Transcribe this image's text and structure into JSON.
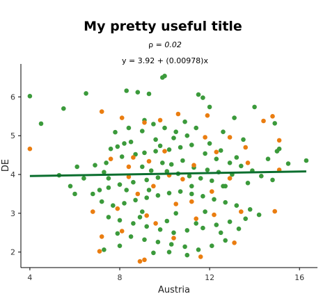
{
  "chart_data": {
    "type": "scatter",
    "title": "My pretty useful title",
    "subtitle_prefix": "ρ = ",
    "subtitle_value": "0.02",
    "equation": "y = 3.92 + (0.00978)x",
    "xlabel": "Austria",
    "ylabel": "DE",
    "xlim": [
      3.6,
      16.8
    ],
    "ylim": [
      1.6,
      6.85
    ],
    "xticks": [
      4,
      8,
      12,
      16
    ],
    "yticks": [
      2,
      3,
      4,
      5,
      6
    ],
    "grid": false,
    "colors": {
      "green": "#3b9a3b",
      "orange": "#ea7d10",
      "line": "#0a6e2e"
    },
    "regression": {
      "intercept": 3.92,
      "slope": 0.00978,
      "x_range": [
        4,
        16.3
      ]
    },
    "series": [
      {
        "color_key": "green",
        "points": [
          [
            4.0,
            6.02
          ],
          [
            4.5,
            5.31
          ],
          [
            5.5,
            5.7
          ],
          [
            6.5,
            6.09
          ],
          [
            6.9,
            4.24
          ],
          [
            7.3,
            4.06
          ],
          [
            7.5,
            3.9
          ],
          [
            7.8,
            5.09
          ],
          [
            8.3,
            6.16
          ],
          [
            8.8,
            6.12
          ],
          [
            9.3,
            6.08
          ],
          [
            9.9,
            6.5
          ],
          [
            10.0,
            6.54
          ],
          [
            11.5,
            6.06
          ],
          [
            11.7,
            5.98
          ],
          [
            12.0,
            5.74
          ],
          [
            13.1,
            5.46
          ],
          [
            14.0,
            5.74
          ],
          [
            14.9,
            5.32
          ],
          [
            15.1,
            4.66
          ],
          [
            16.3,
            4.36
          ],
          [
            13.5,
            4.9
          ],
          [
            13.2,
            4.44
          ],
          [
            12.5,
            4.62
          ],
          [
            12.0,
            4.8
          ],
          [
            11.0,
            5.0
          ],
          [
            10.5,
            5.1
          ],
          [
            10.0,
            5.2
          ],
          [
            9.5,
            5.3
          ],
          [
            9.0,
            5.12
          ],
          [
            8.5,
            4.84
          ],
          [
            8.2,
            4.8
          ],
          [
            7.9,
            4.72
          ],
          [
            7.6,
            4.66
          ],
          [
            8.1,
            4.46
          ],
          [
            8.7,
            4.52
          ],
          [
            9.1,
            4.56
          ],
          [
            9.6,
            4.6
          ],
          [
            10.2,
            4.64
          ],
          [
            10.7,
            4.7
          ],
          [
            11.2,
            4.76
          ],
          [
            11.8,
            4.54
          ],
          [
            12.3,
            4.4
          ],
          [
            12.9,
            4.3
          ],
          [
            13.4,
            4.22
          ],
          [
            13.9,
            4.1
          ],
          [
            14.3,
            3.96
          ],
          [
            14.8,
            3.86
          ],
          [
            13.7,
            3.78
          ],
          [
            12.7,
            3.7
          ],
          [
            12.1,
            3.84
          ],
          [
            11.6,
            3.9
          ],
          [
            11.1,
            3.96
          ],
          [
            10.6,
            4.02
          ],
          [
            10.1,
            4.08
          ],
          [
            9.7,
            3.92
          ],
          [
            9.2,
            3.86
          ],
          [
            8.6,
            3.8
          ],
          [
            8.0,
            3.74
          ],
          [
            7.5,
            3.66
          ],
          [
            7.1,
            3.6
          ],
          [
            6.8,
            3.5
          ],
          [
            7.2,
            3.3
          ],
          [
            7.7,
            3.2
          ],
          [
            8.2,
            3.26
          ],
          [
            8.7,
            3.34
          ],
          [
            9.2,
            3.4
          ],
          [
            9.7,
            3.46
          ],
          [
            10.2,
            3.52
          ],
          [
            10.7,
            3.56
          ],
          [
            11.2,
            3.5
          ],
          [
            11.7,
            3.44
          ],
          [
            12.2,
            3.36
          ],
          [
            12.7,
            3.28
          ],
          [
            13.2,
            3.2
          ],
          [
            13.8,
            3.1
          ],
          [
            14.2,
            2.96
          ],
          [
            13.6,
            2.86
          ],
          [
            12.9,
            2.78
          ],
          [
            12.3,
            2.7
          ],
          [
            11.7,
            2.62
          ],
          [
            11.0,
            2.56
          ],
          [
            10.4,
            2.5
          ],
          [
            9.8,
            2.58
          ],
          [
            9.2,
            2.66
          ],
          [
            8.6,
            2.74
          ],
          [
            8.0,
            2.82
          ],
          [
            7.5,
            2.9
          ],
          [
            7.9,
            2.48
          ],
          [
            8.5,
            2.4
          ],
          [
            9.1,
            2.32
          ],
          [
            9.7,
            2.26
          ],
          [
            10.3,
            2.2
          ],
          [
            10.9,
            2.14
          ],
          [
            11.5,
            2.06
          ],
          [
            12.1,
            2.16
          ],
          [
            12.7,
            2.3
          ],
          [
            11.0,
            1.92
          ],
          [
            10.2,
            2.0
          ],
          [
            9.5,
            1.98
          ],
          [
            8.0,
            2.16
          ],
          [
            7.3,
            2.06
          ],
          [
            5.3,
            3.98
          ],
          [
            6.1,
            4.2
          ],
          [
            5.8,
            3.7
          ],
          [
            6.4,
            3.9
          ],
          [
            6.0,
            3.5
          ],
          [
            15.5,
            4.28
          ],
          [
            15.0,
            4.6
          ],
          [
            14.6,
            4.4
          ],
          [
            9.0,
            4.2
          ],
          [
            9.4,
            4.1
          ],
          [
            9.9,
            4.3
          ],
          [
            10.3,
            4.26
          ],
          [
            10.8,
            4.36
          ],
          [
            11.3,
            4.18
          ],
          [
            11.9,
            4.12
          ],
          [
            12.4,
            4.06
          ],
          [
            9.6,
            4.9
          ],
          [
            10.4,
            4.94
          ],
          [
            11.4,
            5.2
          ],
          [
            10.9,
            5.36
          ],
          [
            9.1,
            5.4
          ],
          [
            8.4,
            5.2
          ],
          [
            12.6,
            5.1
          ],
          [
            11.2,
            3.7
          ],
          [
            9.3,
            3.6
          ],
          [
            10.5,
            3.0
          ],
          [
            9.0,
            3.04
          ],
          [
            11.8,
            3.04
          ],
          [
            12.6,
            3.7
          ],
          [
            13.0,
            4.0
          ],
          [
            7.4,
            4.3
          ],
          [
            8.9,
            2.9
          ],
          [
            10.1,
            2.8
          ],
          [
            11.4,
            2.74
          ],
          [
            12.5,
            2.5
          ],
          [
            13.3,
            2.6
          ],
          [
            8.3,
            3.6
          ],
          [
            9.8,
            4.74
          ]
        ]
      },
      {
        "color_key": "orange",
        "points": [
          [
            4.0,
            4.66
          ],
          [
            7.2,
            5.62
          ],
          [
            8.1,
            5.46
          ],
          [
            9.1,
            5.34
          ],
          [
            9.8,
            5.4
          ],
          [
            10.6,
            5.56
          ],
          [
            11.9,
            5.52
          ],
          [
            12.9,
            4.96
          ],
          [
            14.4,
            5.38
          ],
          [
            14.8,
            5.5
          ],
          [
            15.1,
            4.88
          ],
          [
            15.1,
            4.12
          ],
          [
            14.9,
            3.05
          ],
          [
            13.6,
            4.7
          ],
          [
            12.3,
            4.58
          ],
          [
            11.3,
            4.24
          ],
          [
            10.2,
            3.98
          ],
          [
            9.3,
            4.34
          ],
          [
            8.6,
            4.44
          ],
          [
            7.6,
            4.4
          ],
          [
            8.4,
            3.94
          ],
          [
            9.5,
            3.7
          ],
          [
            11.2,
            3.3
          ],
          [
            12.1,
            3.56
          ],
          [
            13.4,
            3.04
          ],
          [
            12.2,
            2.96
          ],
          [
            11.4,
            2.86
          ],
          [
            10.5,
            3.24
          ],
          [
            9.2,
            2.94
          ],
          [
            8.1,
            2.54
          ],
          [
            7.2,
            2.4
          ],
          [
            7.1,
            2.02
          ],
          [
            8.9,
            1.76
          ],
          [
            9.1,
            1.8
          ],
          [
            10.4,
            2.36
          ],
          [
            11.6,
            1.88
          ],
          [
            13.1,
            2.24
          ],
          [
            6.8,
            3.04
          ],
          [
            8.4,
            4.2
          ],
          [
            10.0,
            4.6
          ],
          [
            11.8,
            4.96
          ],
          [
            12.9,
            3.9
          ],
          [
            10.8,
            3.88
          ],
          [
            8.8,
            3.5
          ],
          [
            7.9,
            3.12
          ],
          [
            9.6,
            2.74
          ],
          [
            13.7,
            4.3
          ]
        ]
      }
    ]
  }
}
